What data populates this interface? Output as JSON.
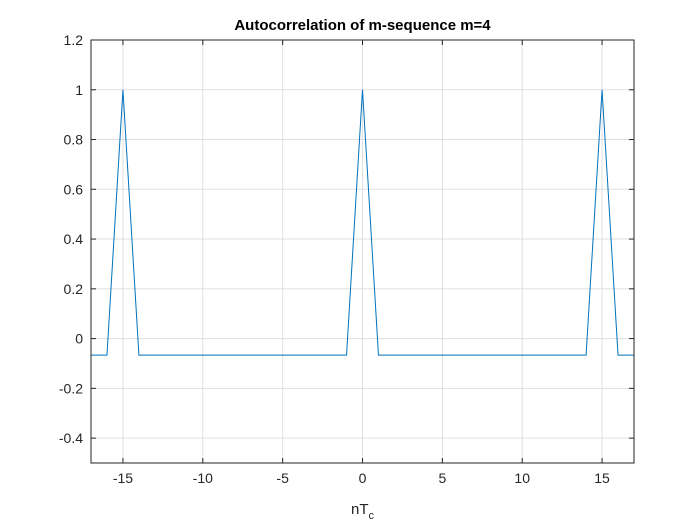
{
  "chart_data": {
    "type": "line",
    "title": "Autocorrelation of m-sequence m=4",
    "xlabel": {
      "base": "nT",
      "subscript": "c"
    },
    "ylabel": "",
    "xlim": [
      -17,
      17
    ],
    "ylim": [
      -0.5,
      1.2
    ],
    "xticks": [
      -15,
      -10,
      -5,
      0,
      5,
      10,
      15
    ],
    "xtick_labels": [
      "-15",
      "-10",
      "-5",
      "0",
      "5",
      "10",
      "15"
    ],
    "yticks": [
      -0.4,
      -0.2,
      0,
      0.2,
      0.4,
      0.6,
      0.8,
      1,
      1.2
    ],
    "ytick_labels": [
      "-0.4",
      "-0.2",
      "0",
      "0.2",
      "0.4",
      "0.6",
      "0.8",
      "1",
      "1.2"
    ],
    "grid": true,
    "series": [
      {
        "color": "#0072bd",
        "x": [
          -17,
          -16,
          -15,
          -14,
          -1,
          0,
          1,
          14,
          15,
          16,
          17
        ],
        "y": [
          -0.0667,
          -0.0667,
          1,
          -0.0667,
          -0.0667,
          1,
          -0.0667,
          -0.0667,
          1,
          -0.0667,
          -0.0667
        ]
      }
    ]
  }
}
